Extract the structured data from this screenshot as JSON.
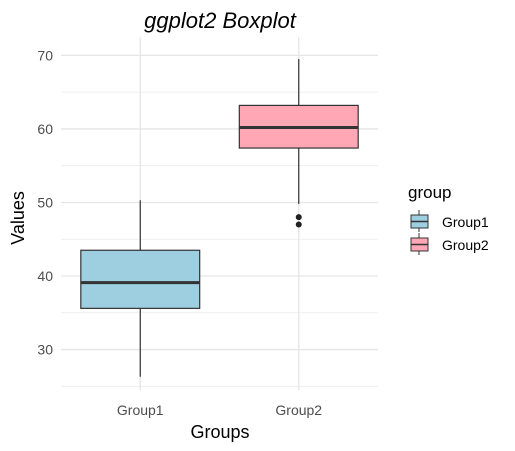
{
  "chart_data": {
    "type": "boxplot",
    "title": "ggplot2 Boxplot",
    "xlabel": "Groups",
    "ylabel": "Values",
    "categories": [
      "Group1",
      "Group2"
    ],
    "ylim": [
      24.5,
      72.5
    ],
    "yticks": [
      30,
      40,
      50,
      60,
      70
    ],
    "grid": true,
    "legend": {
      "title": "group",
      "position": "right",
      "entries": [
        "Group1",
        "Group2"
      ]
    },
    "series": [
      {
        "name": "Group1",
        "color": "#9ecfe0",
        "min": 26.3,
        "q1": 35.6,
        "median": 39.1,
        "q3": 43.5,
        "max": 50.3,
        "outliers": []
      },
      {
        "name": "Group2",
        "color": "#ffa7b5",
        "min": 49.8,
        "q1": 57.4,
        "median": 60.2,
        "q3": 63.2,
        "max": 69.5,
        "outliers": [
          48.0,
          47.0
        ]
      }
    ]
  }
}
